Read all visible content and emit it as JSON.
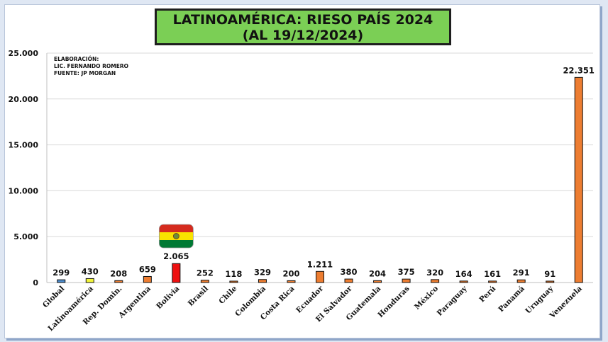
{
  "chart_data": {
    "type": "bar",
    "title": "LATINOAMÉRICA: RIESO PAÍS 2024",
    "subtitle": "(AL 19/12/2024)",
    "credits": [
      "ELABORACIÓN:",
      "LIC. FERNANDO ROMERO",
      "FUENTE: JP MORGAN"
    ],
    "categories": [
      "Global",
      "Latinoamérica",
      "Rep. Domin.",
      "Argentina",
      "Bolivia",
      "Brasil",
      "Chile",
      "Colombia",
      "Costa Rica",
      "Ecuador",
      "El Salvador",
      "Guatemala",
      "Honduras",
      "México",
      "Paraguay",
      "Perú",
      "Panamá",
      "Uruguay",
      "Venezuela"
    ],
    "values": [
      299,
      430,
      208,
      659,
      2065,
      252,
      118,
      329,
      200,
      1211,
      380,
      204,
      375,
      320,
      164,
      161,
      291,
      91,
      22351
    ],
    "value_labels": [
      "299",
      "430",
      "208",
      "659",
      "2.065",
      "252",
      "118",
      "329",
      "200",
      "1.211",
      "380",
      "204",
      "375",
      "320",
      "164",
      "161",
      "291",
      "91",
      "22.351"
    ],
    "bar_colors": [
      "#4f8fd0",
      "#f2f53a",
      "#ed7d31",
      "#ed7d31",
      "#ee1111",
      "#ed7d31",
      "#ed7d31",
      "#ed7d31",
      "#ed7d31",
      "#ed7d31",
      "#ed7d31",
      "#ed7d31",
      "#ed7d31",
      "#ed7d31",
      "#ed7d31",
      "#ed7d31",
      "#ed7d31",
      "#ed7d31",
      "#ed7d31"
    ],
    "ylim": [
      0,
      25000
    ],
    "yticks": [
      0,
      5000,
      10000,
      15000,
      20000,
      25000
    ],
    "ytick_labels": [
      "0",
      "5.000",
      "10.000",
      "15.000",
      "20.000",
      "25.000"
    ],
    "grid": true,
    "flag_marker": {
      "category": "Bolivia",
      "colors": [
        "#d52b1e",
        "#f9e300",
        "#007934"
      ]
    }
  }
}
